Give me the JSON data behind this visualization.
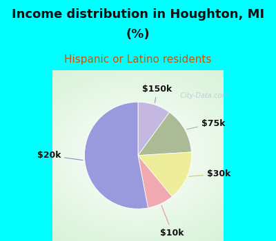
{
  "title_line1": "Income distribution in Houghton, MI",
  "title_line2": "(%)",
  "subtitle": "Hispanic or Latino residents",
  "slices": [
    {
      "label": "$150k",
      "value": 10,
      "color": "#C4B8E0"
    },
    {
      "label": "$75k",
      "value": 14,
      "color": "#AABB96"
    },
    {
      "label": "$30k",
      "value": 15,
      "color": "#EEED99"
    },
    {
      "label": "$10k",
      "value": 8,
      "color": "#F0AAAF"
    },
    {
      "label": "$20k",
      "value": 53,
      "color": "#9999DD"
    }
  ],
  "bg_color": "#00FFFF",
  "chart_bg_center": "#e8f5f0",
  "chart_bg_edge": "#c8eecc",
  "watermark": "City-Data.com",
  "title_fontsize": 13,
  "subtitle_fontsize": 11,
  "label_fontsize": 9,
  "subtitle_color": "#CC5500"
}
